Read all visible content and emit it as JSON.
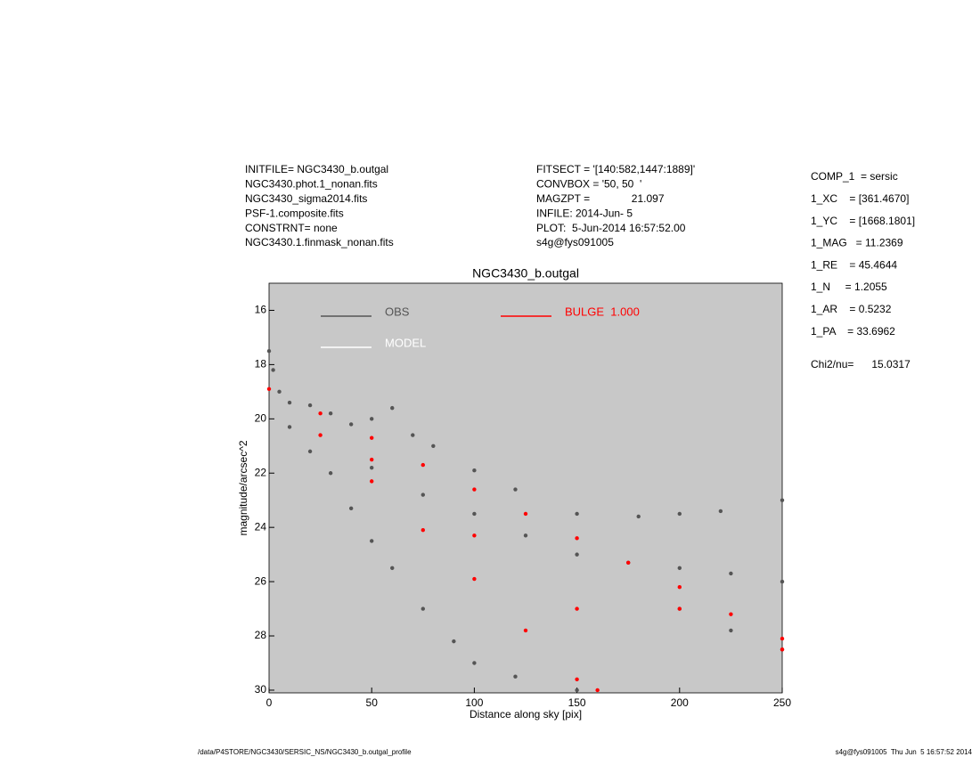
{
  "header": {
    "left": [
      "INITFILE= NGC3430_b.outgal",
      "NGC3430.phot.1_nonan.fits",
      "NGC3430_sigma2014.fits",
      "PSF-1.composite.fits",
      "CONSTRNT= none",
      "NGC3430.1.finmask_nonan.fits"
    ],
    "middle": [
      "FITSECT = '[140:582,1447:1889]'",
      "CONVBOX = '50, 50  '",
      "MAGZPT =              21.097",
      "INFILE: 2014-Jun- 5",
      "PLOT:  5-Jun-2014 16:57:52.00",
      "s4g@fys091005"
    ]
  },
  "parameters": [
    "COMP_1  = sersic",
    "1_XC    = [361.4670]",
    "1_YC    = [1668.1801]",
    "1_MAG   = 11.2369",
    "1_RE    = 45.4644",
    "1_N     = 1.2055",
    "1_AR    = 0.5232",
    "1_PA    = 33.6962",
    "Chi2/nu=      15.0317"
  ],
  "footer": {
    "left": "/data/P4STORE/NGC3430/SERSIC_NS/NGC3430_b.outgal_profile",
    "right": "s4g@fys091005  Thu Jun  5 16:57:52 2014"
  },
  "chart_data": {
    "type": "scatter",
    "title": "NGC3430_b.outgal",
    "xlabel": "Distance along sky [pix]",
    "ylabel": "magnitude/arcsec^2",
    "xlim": [
      0,
      250
    ],
    "xticks": [
      0,
      50,
      100,
      150,
      200,
      250
    ],
    "ylim": [
      30.1,
      15
    ],
    "yticks": [
      16,
      18,
      20,
      22,
      24,
      26,
      28,
      30
    ],
    "background": "#c8c8c8",
    "series": [
      {
        "name": "OBS",
        "color": "#555555",
        "x": [
          0,
          2,
          5,
          10,
          20,
          30,
          40,
          50,
          60,
          70,
          80,
          100,
          120,
          150,
          180,
          200,
          220,
          250,
          10,
          20,
          30,
          40,
          50,
          60,
          75,
          90,
          100,
          120,
          150,
          50,
          75,
          100,
          125,
          150,
          175,
          200,
          225,
          250,
          200,
          225,
          250
        ],
        "y": [
          17.5,
          18.2,
          19.0,
          19.4,
          19.5,
          19.8,
          20.2,
          20.0,
          19.6,
          20.6,
          21.0,
          21.9,
          22.6,
          23.5,
          23.6,
          23.5,
          23.4,
          23.0,
          20.3,
          21.2,
          22.0,
          23.3,
          24.5,
          25.5,
          27.0,
          28.2,
          29.0,
          29.5,
          30.0,
          21.8,
          22.8,
          23.5,
          24.3,
          25.0,
          25.3,
          25.5,
          25.7,
          26.0,
          27.0,
          27.8,
          28.5
        ]
      },
      {
        "name": "MODEL",
        "color": "#ffffff",
        "x": [],
        "y": []
      },
      {
        "name": "BULGE  1.000",
        "color": "#ff0000",
        "x": [
          0,
          25,
          50,
          75,
          100,
          125,
          150,
          175,
          200,
          225,
          250,
          25,
          50,
          75,
          100,
          125,
          150,
          160,
          50,
          100,
          150,
          200,
          250
        ],
        "y": [
          18.9,
          19.8,
          20.7,
          21.7,
          22.6,
          23.5,
          24.4,
          25.3,
          26.2,
          27.2,
          28.1,
          20.6,
          22.3,
          24.1,
          25.9,
          27.8,
          29.6,
          30.0,
          21.5,
          24.3,
          27.0,
          27.0,
          28.5
        ]
      }
    ]
  }
}
